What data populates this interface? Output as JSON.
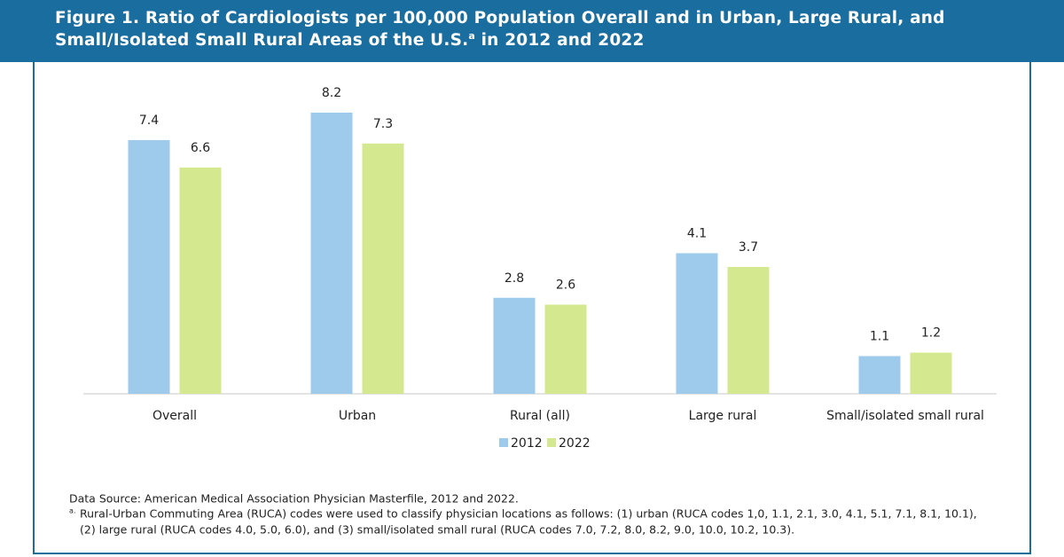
{
  "chart_data": {
    "type": "bar",
    "title": "Figure 1. Ratio of Cardiologists per 100,000 Population Overall and in Urban, Large Rural, and Small/Isolated Small Rural Areas of the U.S.",
    "title_superscript": "a",
    "title_end": " in 2012 and 2022",
    "categories": [
      "Overall",
      "Urban",
      "Rural (all)",
      "Large rural",
      "Small/isolated small rural"
    ],
    "series": [
      {
        "name": "2012",
        "color": "#9ecbec",
        "values": [
          7.4,
          8.2,
          2.8,
          4.1,
          1.1
        ]
      },
      {
        "name": "2022",
        "color": "#d4e88f",
        "values": [
          6.6,
          7.3,
          2.6,
          3.7,
          1.2
        ]
      }
    ],
    "legend": "bottom",
    "source": "Data Source: American Medical Association Physician Masterfile, 2012 and 2022.",
    "footnote_marker": "a.",
    "footnote_lines": [
      "Rural-Urban Commuting Area (RUCA) codes were used to classify physician locations as follows: (1) urban (RUCA codes 1,0, 1.1, 2.1, 3.0, 4.1, 5.1, 7.1, 8.1, 10.1),",
      "(2) large rural (RUCA codes 4.0, 5.0, 6.0), and (3) small/isolated small rural (RUCA codes 7.0, 7.2, 8.0, 8.2, 9.0, 10.0, 10.2, 10.3)."
    ]
  }
}
